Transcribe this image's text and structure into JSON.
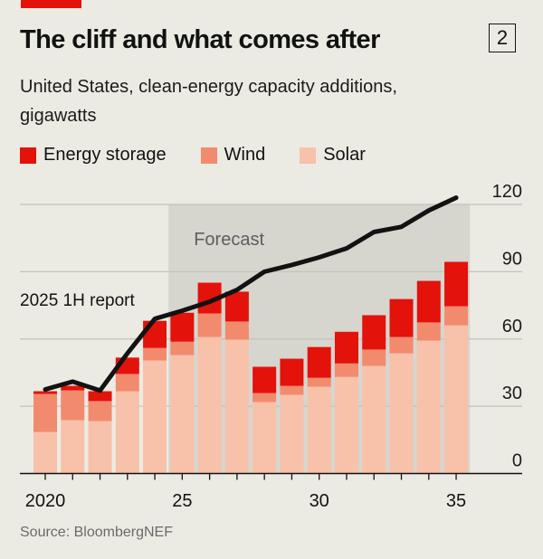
{
  "header": {
    "title": "The cliff and what comes after",
    "chart_number": "2",
    "subtitle": "United States, clean-energy capacity additions, gigawatts",
    "accent_color": "#e3120b"
  },
  "footer": {
    "source": "Source: BloombergNEF"
  },
  "chart_data": {
    "type": "bar",
    "stacked": true,
    "title": "The cliff and what comes after",
    "subtitle": "United States, clean-energy capacity additions, gigawatts",
    "xlabel": "",
    "ylabel": "gigawatts",
    "x": [
      2020,
      2021,
      2022,
      2023,
      2024,
      2025,
      2026,
      2027,
      2028,
      2029,
      2030,
      2031,
      2032,
      2033,
      2034,
      2035
    ],
    "x_tick_labels": [
      {
        "x": 2020,
        "label": "2020"
      },
      {
        "x": 2025,
        "label": "25"
      },
      {
        "x": 2030,
        "label": "30"
      },
      {
        "x": 2035,
        "label": "35"
      }
    ],
    "ylim": [
      0,
      120
    ],
    "y_ticks": [
      0,
      30,
      60,
      90,
      120
    ],
    "y_axis_side": "right",
    "grid": true,
    "legend_position": "top-left",
    "series": [
      {
        "name": "Solar",
        "color": "#f8c1aa",
        "values": [
          18.5,
          23.8,
          23.4,
          36.7,
          50.4,
          52.8,
          60.9,
          59.7,
          31.9,
          35.1,
          38.7,
          43.1,
          48.0,
          53.6,
          59.3,
          66.1
        ]
      },
      {
        "name": "Wind",
        "color": "#f28a6e",
        "values": [
          17.0,
          13.3,
          8.9,
          7.7,
          5.6,
          6.0,
          10.5,
          8.1,
          4.0,
          4.0,
          4.0,
          6.0,
          7.3,
          7.3,
          8.1,
          8.5
        ]
      },
      {
        "name": "Energy storage",
        "color": "#e3120b",
        "values": [
          1.2,
          2.0,
          4.4,
          7.3,
          12.1,
          12.9,
          13.7,
          13.3,
          11.7,
          12.1,
          13.7,
          14.1,
          15.3,
          16.9,
          18.5,
          19.8
        ]
      }
    ],
    "legend": [
      "Energy storage",
      "Wind",
      "Solar"
    ],
    "line_series": {
      "name": "2025 1H report",
      "color": "#121212",
      "values": [
        37.5,
        41.0,
        37.0,
        53.6,
        69.0,
        72.6,
        76.6,
        81.9,
        90.0,
        93.0,
        96.4,
        100.4,
        107.7,
        110.0,
        117.3,
        123.0
      ]
    },
    "annotations": [
      {
        "text": "Forecast",
        "type": "shaded-region",
        "x_start": 2024.5,
        "x_end": 2035.5
      },
      {
        "text": "2025 1H report",
        "type": "line-label"
      }
    ]
  }
}
